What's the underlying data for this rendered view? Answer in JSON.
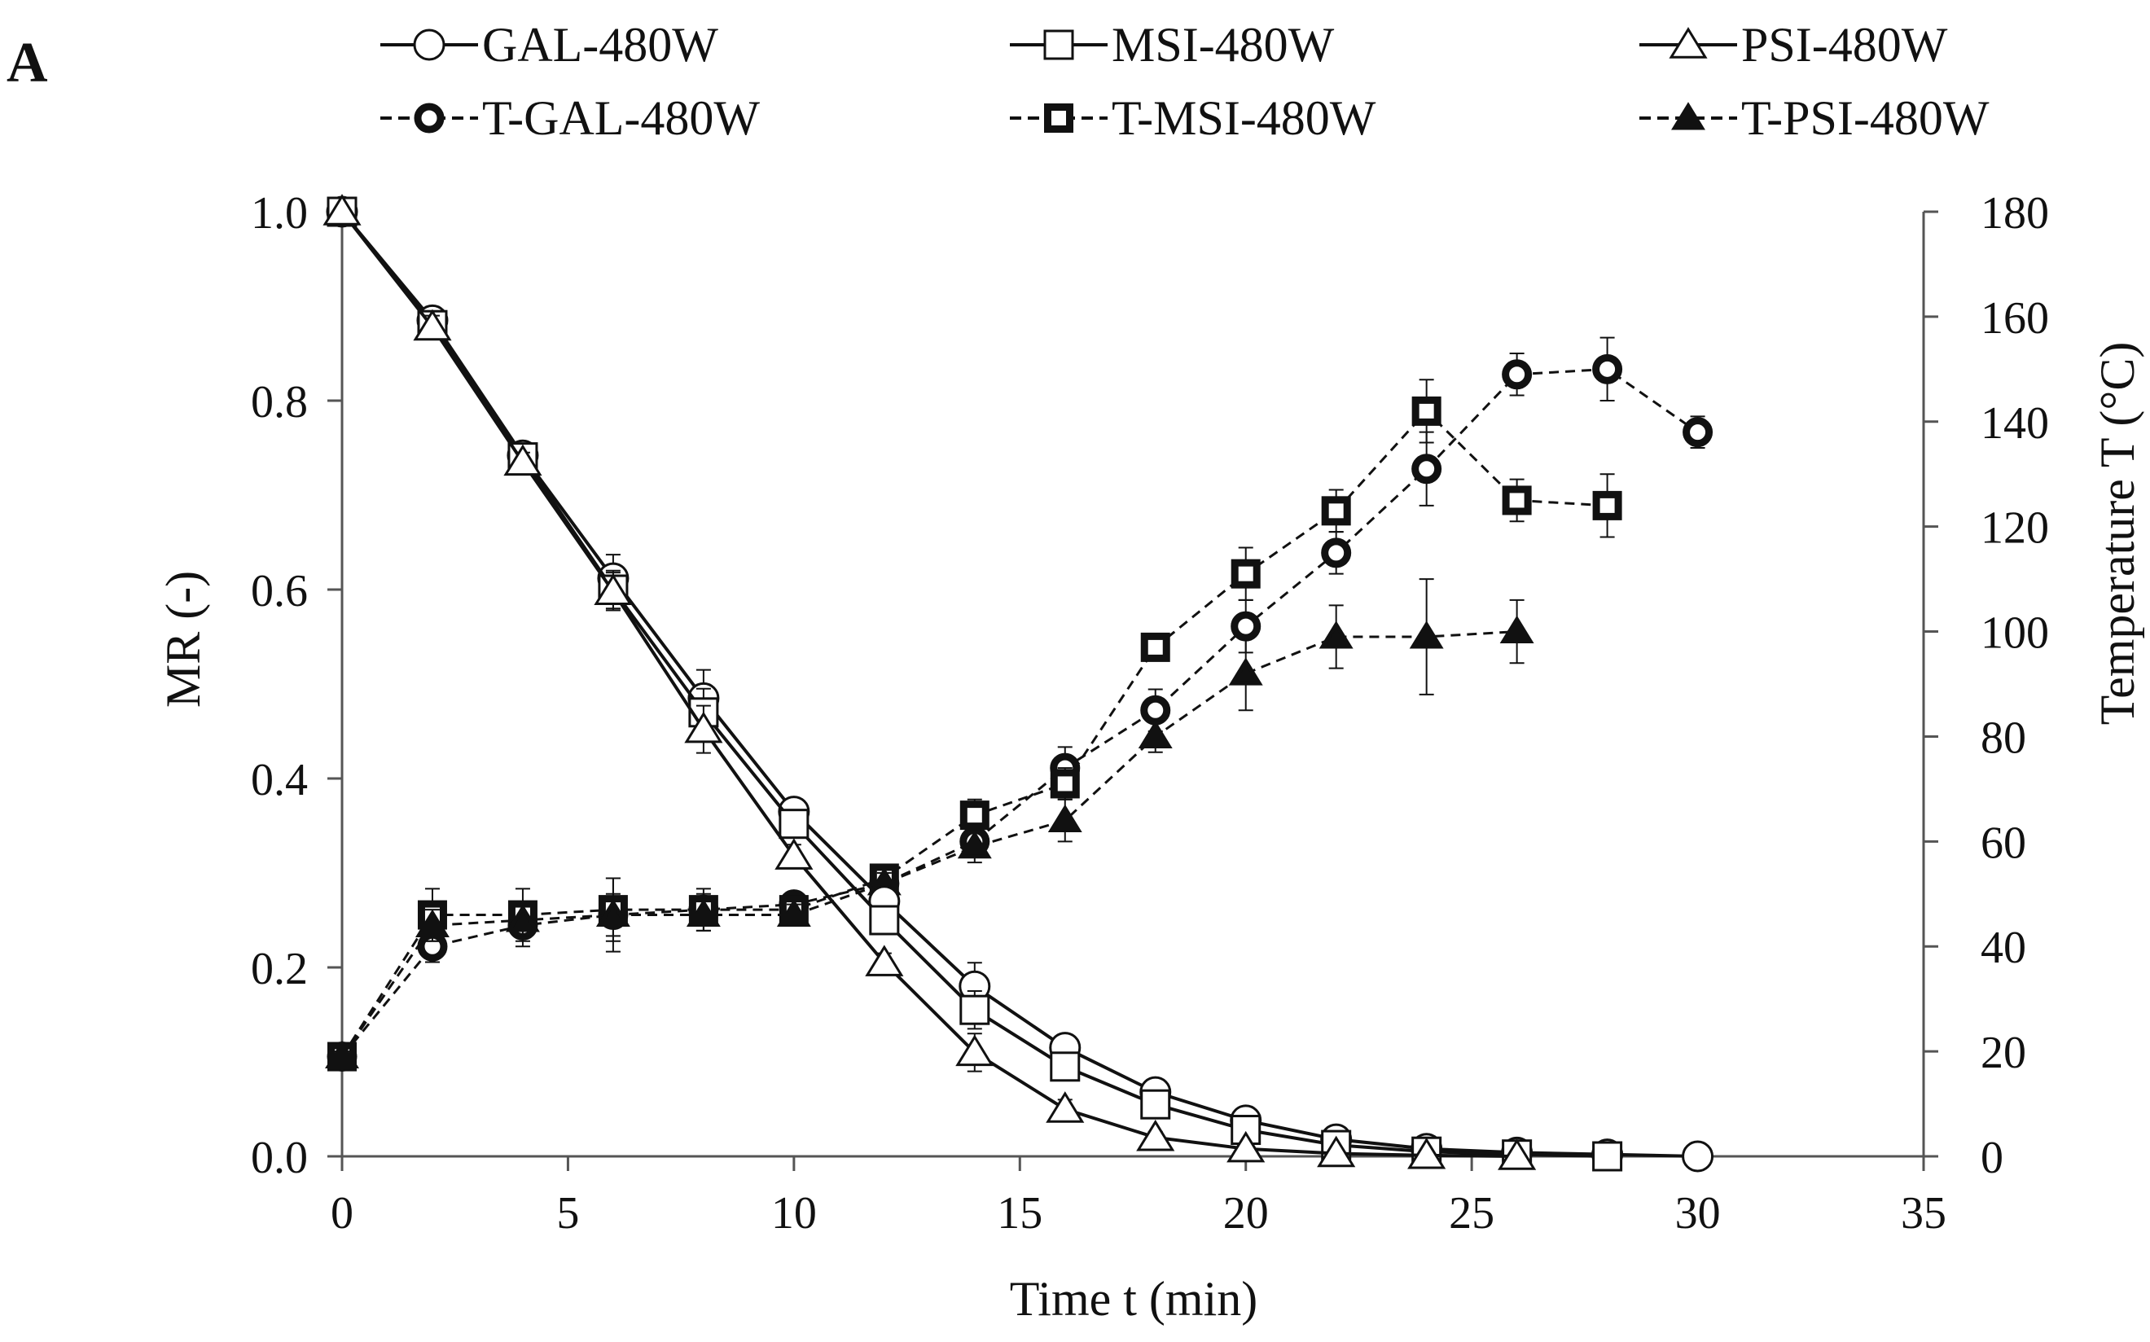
{
  "chart_data": {
    "type": "line",
    "panel_label": "A",
    "xlabel": "Time t (min)",
    "ylabel": "MR (-)",
    "y2label": "Temperature T (°C)",
    "xlim": [
      0,
      35
    ],
    "ylim": [
      0.0,
      1.0
    ],
    "y2lim": [
      0,
      180
    ],
    "x_ticks": [
      0,
      5,
      10,
      15,
      20,
      25,
      30,
      35
    ],
    "y_ticks": [
      "0.0",
      "0.2",
      "0.4",
      "0.6",
      "0.8",
      "1.0"
    ],
    "y2_ticks": [
      0,
      20,
      40,
      60,
      80,
      100,
      120,
      140,
      160,
      180
    ],
    "grid": false,
    "legend_position": "top",
    "series": [
      {
        "name": "GAL-480W",
        "axis": "left",
        "marker": "circle",
        "line": "solid",
        "bold": false,
        "x": [
          0,
          2,
          4,
          6,
          8,
          10,
          12,
          14,
          16,
          18,
          20,
          22,
          24,
          26,
          28,
          30
        ],
        "values": [
          1.0,
          0.885,
          0.742,
          0.612,
          0.485,
          0.365,
          0.27,
          0.18,
          0.115,
          0.068,
          0.038,
          0.018,
          0.008,
          0.004,
          0.002,
          0.0
        ],
        "errors": [
          0,
          0.012,
          0.01,
          0.025,
          0.03,
          0.012,
          0.01,
          0.025,
          0.012,
          0.01,
          0.008,
          0.006,
          0.004,
          0.003,
          0.002,
          0
        ]
      },
      {
        "name": "MSI-480W",
        "axis": "left",
        "marker": "square",
        "line": "solid",
        "bold": false,
        "x": [
          0,
          2,
          4,
          6,
          8,
          10,
          12,
          14,
          16,
          18,
          20,
          22,
          24,
          26,
          28
        ],
        "values": [
          1.0,
          0.88,
          0.74,
          0.6,
          0.47,
          0.352,
          0.25,
          0.155,
          0.095,
          0.055,
          0.028,
          0.012,
          0.005,
          0.002,
          0.0
        ],
        "errors": [
          0,
          0.012,
          0.01,
          0.02,
          0.025,
          0.012,
          0.01,
          0.02,
          0.01,
          0.008,
          0.006,
          0.005,
          0.003,
          0.002,
          0
        ]
      },
      {
        "name": "PSI-480W",
        "axis": "left",
        "marker": "triangle",
        "line": "solid",
        "bold": false,
        "x": [
          0,
          2,
          4,
          6,
          8,
          10,
          12,
          14,
          16,
          18,
          20,
          22,
          24,
          26
        ],
        "values": [
          1.0,
          0.878,
          0.735,
          0.598,
          0.452,
          0.318,
          0.205,
          0.11,
          0.05,
          0.02,
          0.008,
          0.003,
          0.001,
          0.0
        ],
        "errors": [
          0,
          0.012,
          0.01,
          0.02,
          0.025,
          0.012,
          0.01,
          0.02,
          0.01,
          0.006,
          0.004,
          0.003,
          0.002,
          0
        ]
      },
      {
        "name": "T-GAL-480W",
        "axis": "right",
        "marker": "circle",
        "line": "dashed",
        "bold": true,
        "x": [
          0,
          2,
          4,
          6,
          8,
          10,
          12,
          14,
          16,
          18,
          20,
          22,
          24,
          26,
          28,
          30
        ],
        "values": [
          19,
          40,
          44,
          46,
          47,
          48,
          52,
          60,
          74,
          85,
          101,
          115,
          131,
          149,
          150,
          138
        ],
        "errors": [
          1,
          3,
          4,
          7,
          3,
          2,
          2,
          3,
          4,
          4,
          5,
          4,
          7,
          4,
          6,
          3
        ]
      },
      {
        "name": "T-MSI-480W",
        "axis": "right",
        "marker": "square",
        "line": "dashed",
        "bold": true,
        "x": [
          0,
          2,
          4,
          6,
          8,
          10,
          12,
          14,
          16,
          18,
          20,
          22,
          24,
          26,
          28
        ],
        "values": [
          19,
          46,
          46,
          47,
          47,
          47,
          53,
          65,
          71,
          97,
          111,
          123,
          142,
          125,
          124
        ],
        "errors": [
          1,
          5,
          5,
          6,
          4,
          2,
          2,
          3,
          3,
          2,
          5,
          4,
          6,
          4,
          6
        ]
      },
      {
        "name": "T-PSI-480W",
        "axis": "right",
        "marker": "triangle",
        "line": "dashed",
        "bold": true,
        "x": [
          0,
          2,
          4,
          6,
          8,
          10,
          12,
          14,
          16,
          18,
          20,
          22,
          24,
          26
        ],
        "values": [
          19,
          44,
          45,
          46,
          46,
          46,
          52,
          59,
          64,
          80,
          92,
          99,
          99,
          100
        ],
        "errors": [
          1,
          3,
          3,
          4,
          3,
          2,
          2,
          3,
          4,
          3,
          7,
          6,
          11,
          6
        ]
      }
    ]
  }
}
